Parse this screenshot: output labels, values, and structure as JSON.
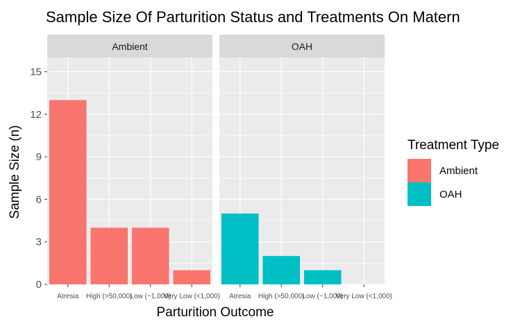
{
  "chart_data": {
    "type": "bar",
    "title": "Sample Size Of Parturition Status and Treatments On Matern",
    "xlabel": "Parturition Outcome",
    "ylabel": "Sample Size (n)",
    "ylim": [
      0,
      16
    ],
    "yticks": [
      0,
      3,
      6,
      9,
      12,
      15
    ],
    "categories": [
      "Atresia",
      "High (>50,000)",
      "Low (~1,000)",
      "Very Low (<1,000)"
    ],
    "grid": true,
    "legend_position": "right",
    "legend_title": "Treatment Type",
    "panels": [
      {
        "name": "Ambient",
        "color": "#F8766D",
        "values": [
          13,
          4,
          4,
          1
        ]
      },
      {
        "name": "OAH",
        "color": "#00BFC4",
        "values": [
          5,
          2,
          1,
          0
        ]
      }
    ],
    "legend": [
      {
        "name": "Ambient",
        "color": "#F8766D"
      },
      {
        "name": "OAH",
        "color": "#00BFC4"
      }
    ]
  }
}
